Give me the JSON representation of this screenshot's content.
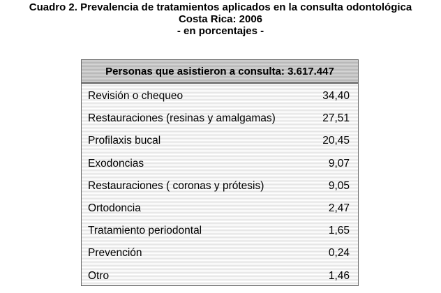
{
  "title": {
    "line1": "Cuadro 2. Prevalencia de tratamientos aplicados en la consulta odontológica",
    "line2": "Costa Rica: 2006",
    "line3": "- en porcentajes -"
  },
  "table": {
    "header": "Personas que asistieron a consulta: 3.617.447",
    "rows": [
      {
        "label": "Revisión o chequeo",
        "value": "34,40"
      },
      {
        "label": "Restauraciones (resinas y amalgamas)",
        "value": "27,51"
      },
      {
        "label": "Profilaxis bucal",
        "value": "20,45"
      },
      {
        "label": "Exodoncias",
        "value": "9,07"
      },
      {
        "label": "Restauraciones ( coronas y prótesis)",
        "value": "9,05"
      },
      {
        "label": "Ortodoncia",
        "value": "2,47"
      },
      {
        "label": "Tratamiento periodontal",
        "value": "1,65"
      },
      {
        "label": "Prevención",
        "value": "0,24"
      },
      {
        "label": "Otro",
        "value": "1,46"
      }
    ]
  }
}
